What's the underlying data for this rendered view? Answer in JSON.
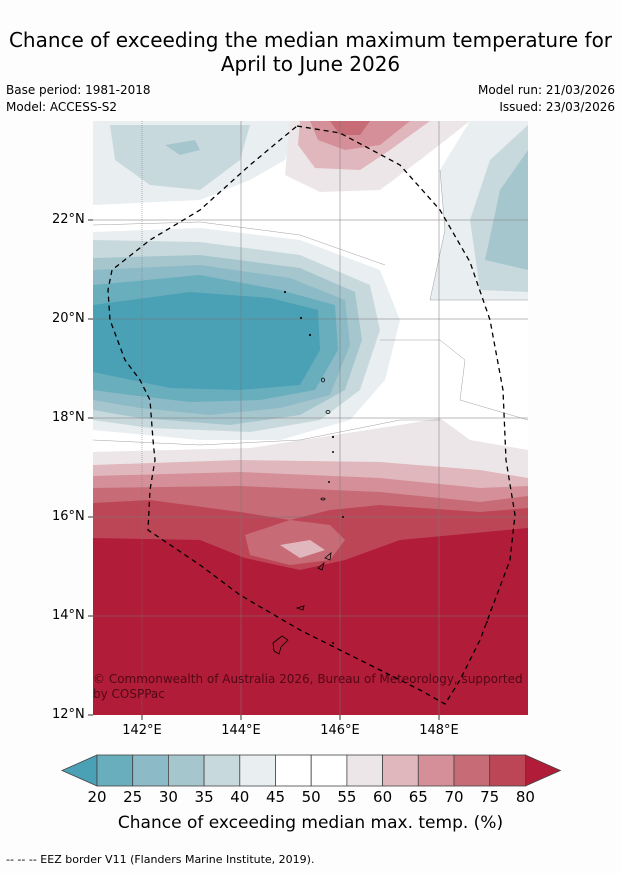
{
  "title_line1": "Chance of exceeding the median maximum temperature for",
  "title_line2": "April to June 2026",
  "base_period": "Base period: 1981-2018",
  "model": "Model: ACCESS-S2",
  "model_run": "Model run: 21/03/2026",
  "issued": "Issued: 23/03/2026",
  "lat_labels": [
    "22°N",
    "20°N",
    "18°N",
    "16°N",
    "14°N",
    "12°N"
  ],
  "lon_labels": [
    "142°E",
    "144°E",
    "146°E",
    "148°E"
  ],
  "credit": "© Commonwealth of Australia 2026, Bureau of Meteorology, supported by COSPPac",
  "colorbar": {
    "ticks": [
      "20",
      "25",
      "30",
      "35",
      "40",
      "45",
      "50",
      "55",
      "60",
      "65",
      "70",
      "75",
      "80"
    ],
    "colors": [
      "#4aa0b5",
      "#69aebd",
      "#8cbac7",
      "#a6c6ce",
      "#c8d9de",
      "#e9eef1",
      "#ffffff",
      "#ffffff",
      "#ece6e8",
      "#e0b7bd",
      "#d58f98",
      "#c76c76",
      "#bd4656",
      "#b11d38"
    ],
    "label": "Chance of exceeding median max. temp. (%)"
  },
  "footer": "-- -- -- EEZ border V11 (Flanders Marine Institute, 2019)."
}
